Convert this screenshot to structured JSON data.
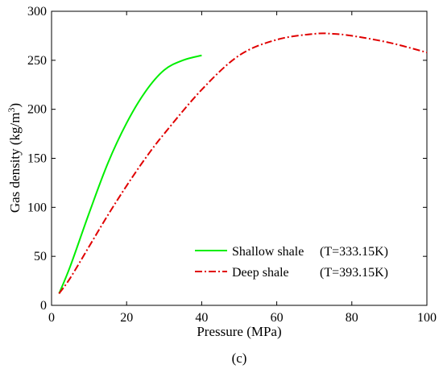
{
  "chart_data": {
    "type": "line",
    "xlabel": "Pressure (MPa)",
    "ylabel_main": "Gas density (kg/m",
    "ylabel_sup": "3",
    "ylabel_close": ")",
    "panel_label": "(c)",
    "xlim": [
      0,
      100
    ],
    "ylim": [
      0,
      300
    ],
    "x_ticks": [
      0,
      20,
      40,
      60,
      80,
      100
    ],
    "y_ticks": [
      0,
      50,
      100,
      150,
      200,
      250,
      300
    ],
    "grid": false,
    "legend_position": "bottom-right",
    "series": [
      {
        "name": "Shallow shale",
        "temp_label": "(T=333.15K)",
        "color": "#00ee00",
        "style": "solid",
        "x": [
          2,
          5,
          10,
          15,
          20,
          25,
          30,
          35,
          40
        ],
        "y": [
          12,
          40,
          94,
          145,
          186,
          218,
          240,
          250,
          255
        ]
      },
      {
        "name": "Deep shale",
        "temp_label": "(T=393.15K)",
        "color": "#e00000",
        "style": "dashdot",
        "x": [
          2,
          5,
          10,
          15,
          20,
          25,
          30,
          40,
          50,
          60,
          70,
          75,
          80,
          90,
          100
        ],
        "y": [
          12,
          28,
          60,
          92,
          122,
          150,
          175,
          220,
          255,
          271,
          277,
          277,
          275,
          268,
          258
        ]
      }
    ]
  }
}
